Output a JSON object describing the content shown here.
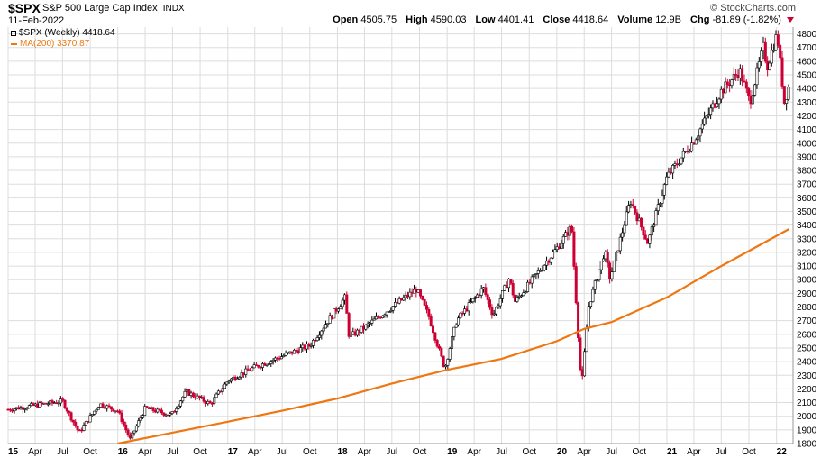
{
  "header": {
    "symbol": "$SPX",
    "name": "S&P 500 Large Cap Index",
    "exchange": "INDX",
    "date": "11-Feb-2022",
    "brand": "© StockCharts.com",
    "open_label": "Open",
    "open": "4505.75",
    "high_label": "High",
    "high": "4590.03",
    "low_label": "Low",
    "low": "4401.41",
    "close_label": "Close",
    "close": "4418.64",
    "volume_label": "Volume",
    "volume": "12.9B",
    "chg_label": "Chg",
    "chg": "-81.89 (-1.82%)"
  },
  "legend": {
    "price": "$SPX (Weekly) 4418.64",
    "ma": "MA(200) 3370.87"
  },
  "colors": {
    "up": "#000000",
    "down": "#cc0033",
    "ma": "#ee7711",
    "grid": "#dddddd"
  },
  "chart_data": {
    "type": "line",
    "title": "$SPX S&P 500 Large Cap Index INDX",
    "xlabel": "",
    "ylabel": "",
    "ylim": [
      1800,
      4850
    ],
    "grid": true,
    "legend_position": "top-left",
    "x_ticks": [
      "15",
      "Apr",
      "Jul",
      "Oct",
      "16",
      "Apr",
      "Jul",
      "Oct",
      "17",
      "Apr",
      "Jul",
      "Oct",
      "18",
      "Apr",
      "Jul",
      "Oct",
      "19",
      "Apr",
      "Jul",
      "Oct",
      "20",
      "Apr",
      "Jul",
      "Oct",
      "21",
      "Apr",
      "Jul",
      "Oct",
      "22"
    ],
    "y_ticks": [
      1800,
      1900,
      2000,
      2100,
      2200,
      2300,
      2400,
      2500,
      2600,
      2700,
      2800,
      2900,
      3000,
      3100,
      3200,
      3300,
      3400,
      3500,
      3600,
      3700,
      3800,
      3900,
      4000,
      4100,
      4200,
      4300,
      4400,
      4500,
      4600,
      4700,
      4800
    ],
    "series": [
      {
        "name": "$SPX (Weekly)",
        "x": [
          "2015-01-01",
          "2015-04-01",
          "2015-07-01",
          "2015-08-25",
          "2015-11-01",
          "2016-01-01",
          "2016-02-11",
          "2016-04-01",
          "2016-06-27",
          "2016-08-15",
          "2016-11-04",
          "2017-01-01",
          "2017-04-01",
          "2017-07-01",
          "2017-10-01",
          "2018-01-26",
          "2018-02-09",
          "2018-04-01",
          "2018-07-01",
          "2018-09-21",
          "2018-11-01",
          "2018-12-24",
          "2019-02-01",
          "2019-05-01",
          "2019-06-03",
          "2019-07-26",
          "2019-08-15",
          "2019-10-01",
          "2020-01-01",
          "2020-02-19",
          "2020-03-23",
          "2020-04-15",
          "2020-06-08",
          "2020-06-26",
          "2020-09-02",
          "2020-10-30",
          "2021-01-01",
          "2021-04-01",
          "2021-07-01",
          "2021-09-01",
          "2021-10-04",
          "2021-11-18",
          "2021-12-01",
          "2022-01-03",
          "2022-01-27",
          "2022-02-11"
        ],
        "values": [
          2050,
          2080,
          2110,
          1880,
          2090,
          2040,
          1830,
          2060,
          2010,
          2180,
          2090,
          2260,
          2360,
          2440,
          2520,
          2870,
          2580,
          2650,
          2800,
          2930,
          2730,
          2350,
          2700,
          2940,
          2740,
          3010,
          2840,
          2970,
          3230,
          3390,
          2200,
          2800,
          3210,
          3010,
          3580,
          3270,
          3750,
          4020,
          4380,
          4530,
          4300,
          4700,
          4560,
          4800,
          4300,
          4418.64
        ]
      },
      {
        "name": "MA(200)",
        "x": [
          "2016-01-01",
          "2016-07-01",
          "2017-01-01",
          "2017-07-01",
          "2018-01-01",
          "2018-07-01",
          "2019-01-01",
          "2019-07-01",
          "2020-01-01",
          "2020-04-01",
          "2020-07-01",
          "2021-01-01",
          "2021-07-01",
          "2022-02-11"
        ],
        "values": [
          1800,
          1880,
          1960,
          2040,
          2130,
          2240,
          2340,
          2420,
          2550,
          2640,
          2690,
          2870,
          3100,
          3370.87
        ]
      }
    ]
  }
}
